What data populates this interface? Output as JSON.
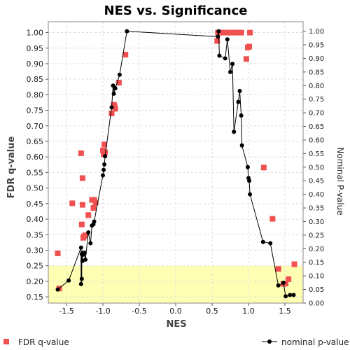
{
  "chart_data": {
    "type": "scatter",
    "title": "NES vs. Significance",
    "xlabel": "NES",
    "ylabel": "FDR q-value",
    "ylabel_right": "Nominal P-value",
    "xlim": [
      -1.75,
      1.75
    ],
    "ylim": [
      0.13,
      1.035
    ],
    "ylim_right": [
      0.0,
      1.035
    ],
    "x_ticks": [
      -1.5,
      -1.0,
      -0.5,
      0.0,
      0.5,
      1.0,
      1.5
    ],
    "x_tick_labels": [
      "-1.5",
      "-1.0",
      "-0.5",
      "0.0",
      "0.5",
      "1.0",
      "1.5"
    ],
    "y_ticks": [
      0.15,
      0.2,
      0.25,
      0.3,
      0.35,
      0.4,
      0.45,
      0.5,
      0.55,
      0.6,
      0.65,
      0.7,
      0.75,
      0.8,
      0.85,
      0.9,
      0.95,
      1.0
    ],
    "y_tick_labels": [
      "0.15",
      "0.20",
      "0.25",
      "0.30",
      "0.35",
      "0.40",
      "0.45",
      "0.50",
      "0.55",
      "0.60",
      "0.65",
      "0.70",
      "0.75",
      "0.80",
      "0.85",
      "0.90",
      "0.95",
      "1.00"
    ],
    "y_right_ticks": [
      0.0,
      0.05,
      0.1,
      0.15,
      0.2,
      0.25,
      0.3,
      0.35,
      0.4,
      0.45,
      0.5,
      0.55,
      0.6,
      0.65,
      0.7,
      0.75,
      0.8,
      0.85,
      0.9,
      0.95,
      1.0
    ],
    "y_right_tick_labels": [
      "0.00",
      "0.05",
      "0.10",
      "0.15",
      "0.20",
      "0.25",
      "0.30",
      "0.35",
      "0.40",
      "0.45",
      "0.50",
      "0.55",
      "0.60",
      "0.65",
      "0.70",
      "0.75",
      "0.80",
      "0.85",
      "0.90",
      "0.95",
      "1.00"
    ],
    "threshold": {
      "y_max": 0.25,
      "color": "#ffffb3"
    },
    "grid": true,
    "legend_placement": "bottom",
    "series": [
      {
        "name": "FDR q-value",
        "axis": "left",
        "kind": "scatter",
        "color": "#f05050",
        "x": [
          -1.62,
          -1.6,
          -1.42,
          -1.3,
          -1.29,
          -1.28,
          -1.28,
          -1.27,
          -1.26,
          -1.24,
          -1.2,
          -1.15,
          -1.13,
          -1.12,
          -1.1,
          -1.0,
          -0.99,
          -0.98,
          -0.97,
          -0.88,
          -0.85,
          -0.84,
          -0.83,
          -0.78,
          -0.69,
          0.57,
          0.58,
          0.62,
          0.67,
          0.71,
          0.73,
          0.75,
          0.78,
          0.8,
          0.83,
          0.86,
          0.88,
          0.9,
          0.97,
          0.99,
          1.01,
          1.02,
          1.21,
          1.33,
          1.41,
          1.48,
          1.51,
          1.55,
          1.63
        ],
        "y": [
          0.29,
          0.177,
          0.451,
          0.612,
          0.383,
          0.532,
          0.446,
          0.34,
          0.345,
          0.348,
          0.413,
          0.462,
          0.436,
          0.462,
          0.453,
          0.621,
          0.609,
          0.64,
          0.615,
          0.74,
          0.768,
          0.763,
          0.755,
          0.839,
          0.929,
          0.973,
          1.0,
          1.0,
          1.0,
          1.0,
          1.0,
          1.0,
          1.0,
          1.0,
          1.0,
          1.0,
          1.0,
          1.0,
          0.915,
          0.952,
          0.955,
          1.0,
          0.566,
          0.401,
          0.24,
          0.192,
          0.193,
          0.207,
          0.255
        ]
      },
      {
        "name": "nominal p-value",
        "axis": "right",
        "kind": "line",
        "color": "#000000",
        "x": [
          -1.62,
          -1.47,
          -1.3,
          -1.3,
          -1.29,
          -1.29,
          -1.28,
          -1.28,
          -1.27,
          -1.25,
          -1.24,
          -1.2,
          -1.17,
          -1.15,
          -1.13,
          -1.12,
          -1.0,
          -0.99,
          -0.98,
          -0.97,
          -0.88,
          -0.86,
          -0.85,
          -0.83,
          -0.77,
          -0.67,
          0.58,
          0.59,
          0.6,
          0.68,
          0.71,
          0.75,
          0.78,
          0.8,
          0.86,
          0.88,
          0.9,
          0.91,
          0.99,
          1.0,
          1.01,
          1.02,
          1.2,
          1.3,
          1.41,
          1.48,
          1.51,
          1.57,
          1.62
        ],
        "y": [
          0.05,
          0.083,
          0.204,
          0.07,
          0.089,
          0.18,
          0.155,
          0.185,
          0.178,
          0.185,
          0.16,
          0.26,
          0.22,
          0.285,
          0.29,
          0.3,
          0.47,
          0.49,
          0.51,
          0.54,
          0.72,
          0.8,
          0.77,
          0.79,
          0.84,
          1.0,
          0.98,
          1.0,
          0.91,
          0.9,
          0.97,
          0.85,
          0.88,
          0.63,
          0.74,
          0.78,
          0.69,
          0.58,
          0.5,
          0.46,
          0.45,
          0.4,
          0.225,
          0.22,
          0.065,
          0.075,
          0.025,
          0.03,
          0.03
        ]
      }
    ]
  }
}
